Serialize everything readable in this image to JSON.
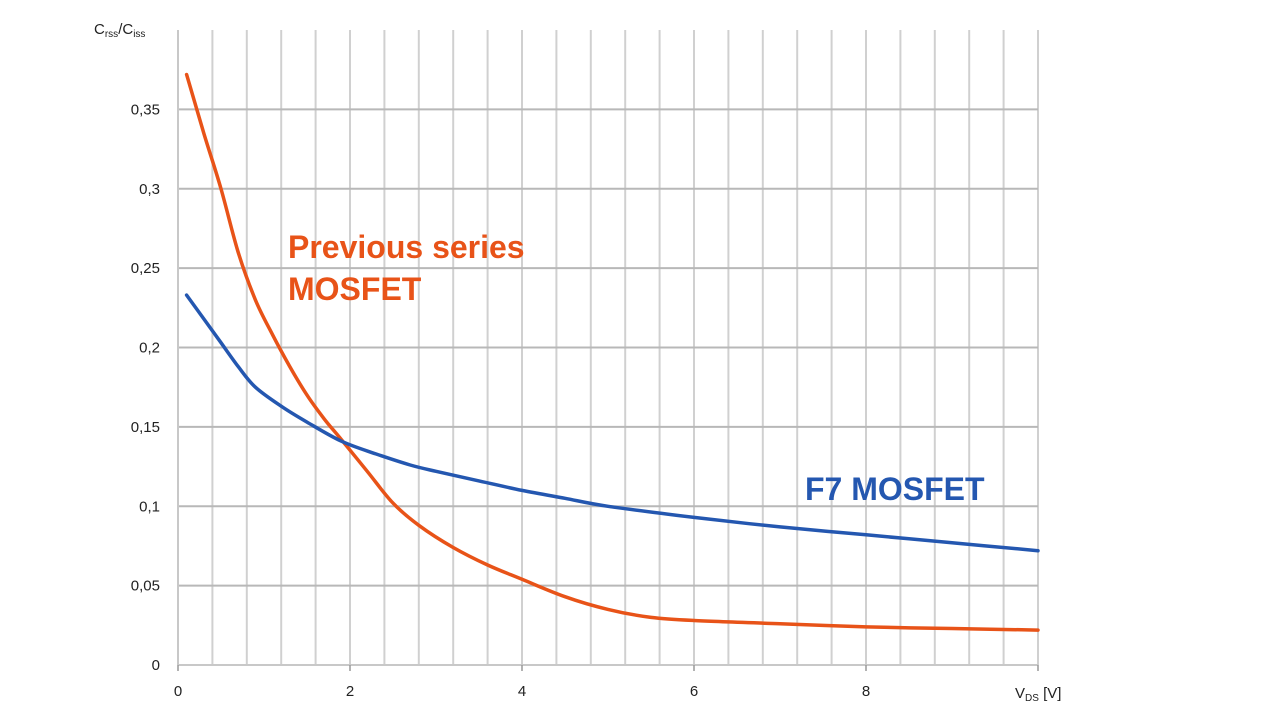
{
  "chart_data": {
    "type": "line",
    "title": "",
    "ylabel": {
      "main": "C",
      "sub1": "rss",
      "slash": "/C",
      "sub2": "iss"
    },
    "xlabel": {
      "main": "V",
      "sub": "DS",
      "unit": " [V]"
    },
    "xlim": [
      0,
      10
    ],
    "ylim": [
      0,
      0.4
    ],
    "x_ticks": [
      {
        "value": 0,
        "label": "0"
      },
      {
        "value": 2,
        "label": "2"
      },
      {
        "value": 4,
        "label": "4"
      },
      {
        "value": 6,
        "label": "6"
      },
      {
        "value": 8,
        "label": "8"
      }
    ],
    "y_ticks": [
      {
        "value": 0,
        "label": "0"
      },
      {
        "value": 0.05,
        "label": "0,05"
      },
      {
        "value": 0.1,
        "label": "0,1"
      },
      {
        "value": 0.15,
        "label": "0,15"
      },
      {
        "value": 0.2,
        "label": "0,2"
      },
      {
        "value": 0.25,
        "label": "0,25"
      },
      {
        "value": 0.3,
        "label": "0,3"
      },
      {
        "value": 0.35,
        "label": "0,35"
      }
    ],
    "x_grid_step": 0.4,
    "y_grid_step": 0.05,
    "grid": true,
    "series": [
      {
        "name": "Previous series MOSFET",
        "label_lines": [
          "Previous series",
          "MOSFET"
        ],
        "color": "#e85318",
        "points": [
          [
            0.1,
            0.372
          ],
          [
            0.3,
            0.335
          ],
          [
            0.5,
            0.3
          ],
          [
            0.7,
            0.26
          ],
          [
            0.9,
            0.23
          ],
          [
            1.1,
            0.208
          ],
          [
            1.3,
            0.188
          ],
          [
            1.5,
            0.17
          ],
          [
            1.7,
            0.155
          ],
          [
            1.9,
            0.142
          ],
          [
            2.2,
            0.122
          ],
          [
            2.5,
            0.102
          ],
          [
            2.8,
            0.088
          ],
          [
            3.2,
            0.074
          ],
          [
            3.6,
            0.063
          ],
          [
            4.0,
            0.054
          ],
          [
            4.5,
            0.043
          ],
          [
            5.0,
            0.035
          ],
          [
            5.5,
            0.03
          ],
          [
            6.0,
            0.028
          ],
          [
            7.0,
            0.026
          ],
          [
            8.0,
            0.024
          ],
          [
            9.0,
            0.023
          ],
          [
            10.0,
            0.022
          ]
        ]
      },
      {
        "name": "F7 MOSFET",
        "label_lines": [
          "F7 MOSFET"
        ],
        "color": "#2457b0",
        "points": [
          [
            0.1,
            0.233
          ],
          [
            0.3,
            0.218
          ],
          [
            0.5,
            0.203
          ],
          [
            0.7,
            0.188
          ],
          [
            0.9,
            0.175
          ],
          [
            1.2,
            0.163
          ],
          [
            1.5,
            0.153
          ],
          [
            1.9,
            0.141
          ],
          [
            2.3,
            0.133
          ],
          [
            2.7,
            0.126
          ],
          [
            3.0,
            0.122
          ],
          [
            3.5,
            0.116
          ],
          [
            4.0,
            0.11
          ],
          [
            4.5,
            0.105
          ],
          [
            5.0,
            0.1
          ],
          [
            6.0,
            0.093
          ],
          [
            7.0,
            0.087
          ],
          [
            8.0,
            0.082
          ],
          [
            9.0,
            0.077
          ],
          [
            10.0,
            0.072
          ]
        ]
      }
    ]
  }
}
